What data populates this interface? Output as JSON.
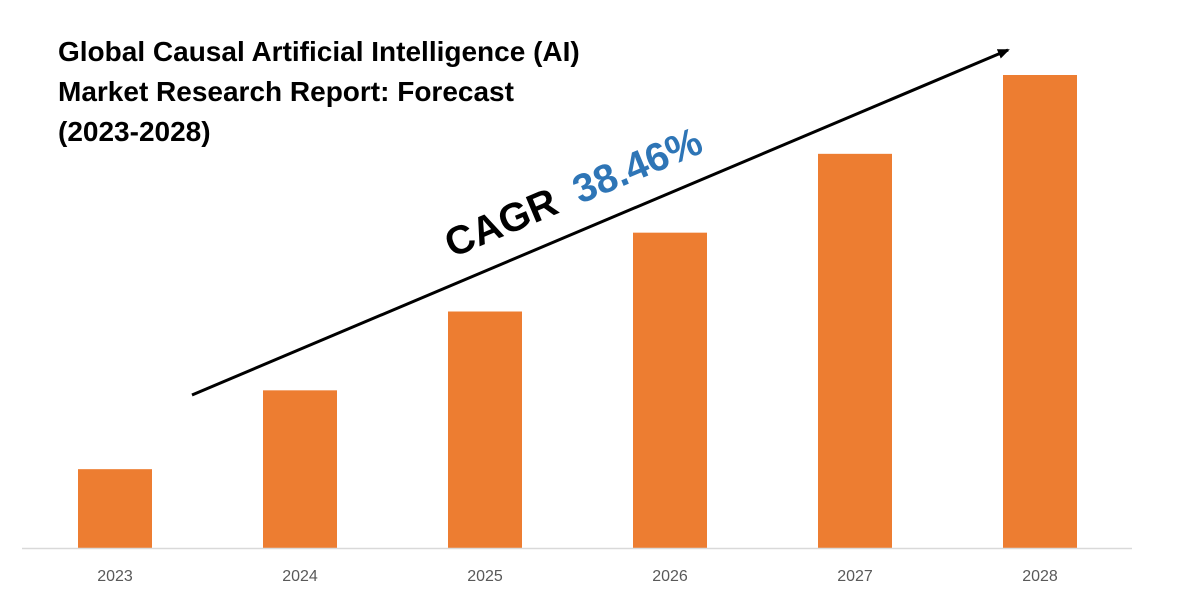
{
  "chart_data": {
    "type": "bar",
    "title_lines": [
      "Global Causal Artificial Intelligence (AI)",
      "Market Research Report: Forecast",
      "(2023-2028)"
    ],
    "categories": [
      "2023",
      "2024",
      "2025",
      "2026",
      "2027",
      "2028"
    ],
    "values": [
      1.0,
      2.0,
      3.0,
      4.0,
      5.0,
      6.0
    ],
    "ylim": [
      0,
      6.0
    ],
    "grid": false,
    "legend": "none",
    "annotation": {
      "prefix": "CAGR",
      "value": "38.46%"
    },
    "colors": {
      "bar": "#ED7D31",
      "cagr_value": "#2E75B6",
      "text": "#000000",
      "tick": "#595959",
      "axis": "#D9D9D9"
    }
  }
}
